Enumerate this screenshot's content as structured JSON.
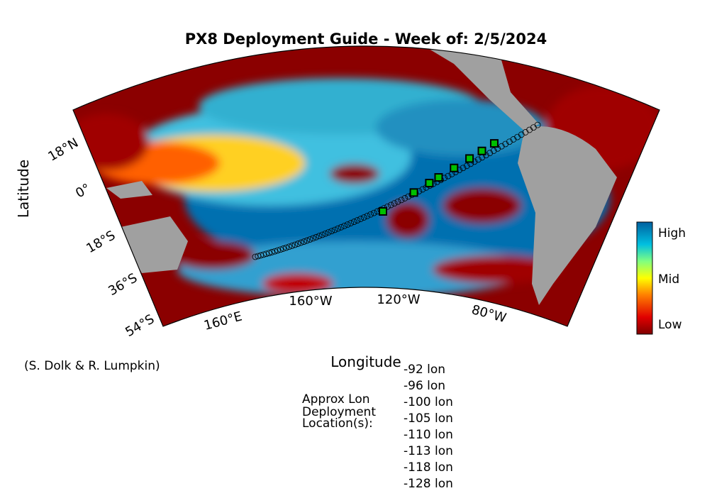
{
  "title": "PX8 Deployment Guide - Week of: 2/5/2024",
  "axes": {
    "y_label": "Latitude",
    "x_label": "Longitude",
    "lat_labels": [
      "18°N",
      "0°",
      "18°S",
      "36°S",
      "54°S"
    ],
    "lon_labels": [
      "160°E",
      "160°W",
      "120°W",
      "80°W"
    ]
  },
  "colorbar": {
    "labels": [
      "High",
      "Mid",
      "Low"
    ]
  },
  "credit": "(S. Dolk & R. Lumpkin)",
  "deployment": {
    "heading": [
      "Approx Lon",
      "Deployment",
      "Location(s):"
    ],
    "locations": [
      {
        "lon": -92,
        "label": "-92 lon"
      },
      {
        "lon": -96,
        "label": "-96 lon"
      },
      {
        "lon": -100,
        "label": "-100 lon"
      },
      {
        "lon": -105,
        "label": "-105 lon"
      },
      {
        "lon": -110,
        "label": "-110 lon"
      },
      {
        "lon": -113,
        "label": "-113 lon"
      },
      {
        "lon": -118,
        "label": "-118 lon"
      },
      {
        "lon": -128,
        "label": "-128 lon"
      }
    ]
  }
}
